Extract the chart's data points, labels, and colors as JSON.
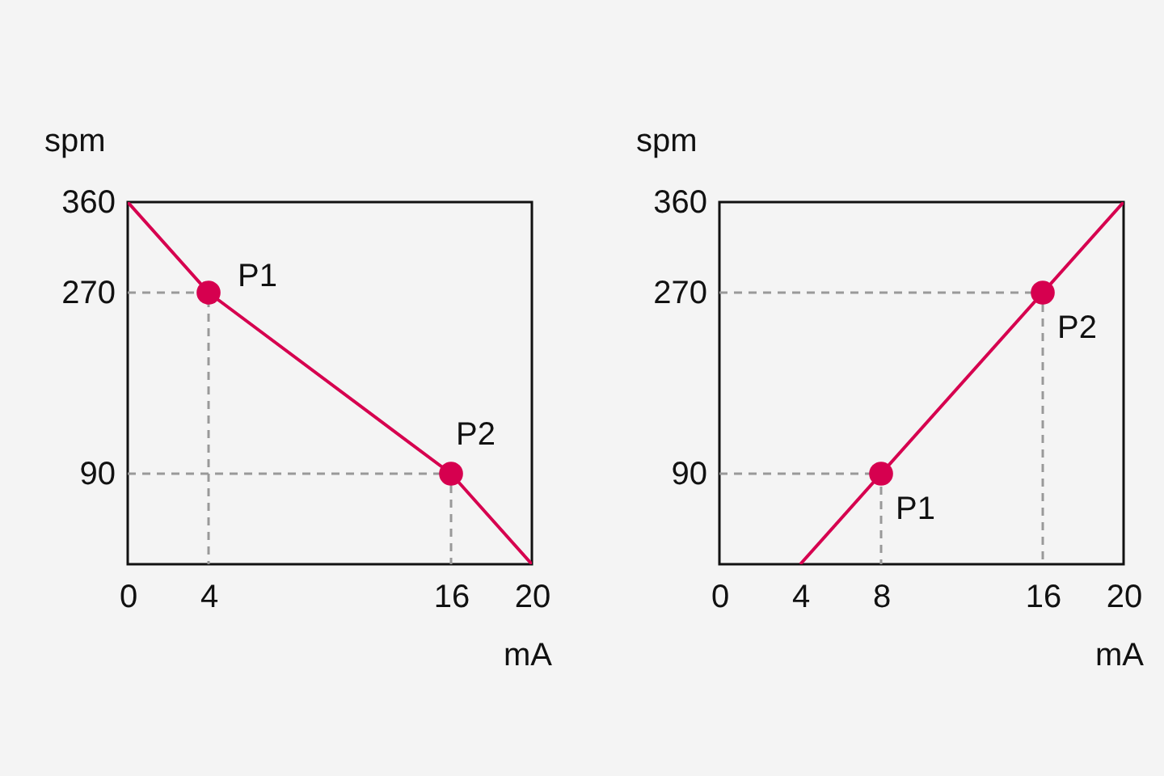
{
  "chart_data": [
    {
      "type": "line",
      "xlim": [
        0,
        20
      ],
      "ylim": [
        0,
        360
      ],
      "xticks": [
        0,
        4,
        16,
        20
      ],
      "yticks": [
        90,
        270,
        360
      ],
      "xlabel": "mA",
      "ylabel": "spm",
      "grid": false,
      "series": [
        {
          "type": "line",
          "color": "#999999",
          "line_style": "dashed",
          "x": [
            0,
            4,
            4
          ],
          "values": [
            270,
            270,
            0
          ]
        },
        {
          "type": "line",
          "color": "#999999",
          "line_style": "dashed",
          "x": [
            0,
            16,
            16
          ],
          "values": [
            90,
            90,
            0
          ]
        },
        {
          "color": "#d6004f",
          "line_style": "solid",
          "x": [
            0,
            4,
            16,
            20
          ],
          "values": [
            360,
            270,
            90,
            0
          ]
        },
        {
          "type": "scatter",
          "color": "#d6004f",
          "marker": "circle",
          "x": [
            4,
            16
          ],
          "values": [
            270,
            90
          ]
        }
      ],
      "annotations": [
        {
          "text": "P1",
          "x": 4,
          "y": 270
        },
        {
          "text": "P2",
          "x": 16,
          "y": 90
        }
      ]
    },
    {
      "type": "line",
      "xlim": [
        0,
        20
      ],
      "ylim": [
        0,
        360
      ],
      "xticks": [
        0,
        4,
        8,
        16,
        20
      ],
      "yticks": [
        90,
        270,
        360
      ],
      "xlabel": "mA",
      "ylabel": "spm",
      "grid": false,
      "series": [
        {
          "type": "line",
          "color": "#999999",
          "line_style": "dashed",
          "x": [
            0,
            8,
            8
          ],
          "values": [
            90,
            90,
            0
          ]
        },
        {
          "type": "line",
          "color": "#999999",
          "line_style": "dashed",
          "x": [
            0,
            16,
            16
          ],
          "values": [
            270,
            270,
            0
          ]
        },
        {
          "color": "#d6004f",
          "line_style": "solid",
          "x": [
            4,
            20
          ],
          "values": [
            0,
            360
          ]
        },
        {
          "type": "scatter",
          "color": "#d6004f",
          "marker": "circle",
          "x": [
            8,
            16
          ],
          "values": [
            90,
            270
          ]
        }
      ],
      "annotations": [
        {
          "text": "P1",
          "x": 8,
          "y": 90
        },
        {
          "text": "P2",
          "x": 16,
          "y": 270
        }
      ]
    }
  ]
}
